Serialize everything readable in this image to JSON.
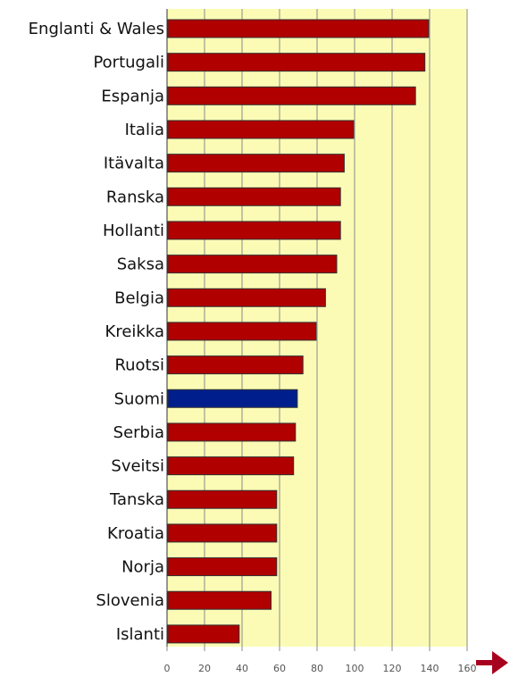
{
  "chart_data": {
    "type": "bar",
    "orientation": "horizontal",
    "categories": [
      "Englanti & Wales",
      "Portugali",
      "Espanja",
      "Italia",
      "Itävalta",
      "Ranska",
      "Hollanti",
      "Saksa",
      "Belgia",
      "Kreikka",
      "Ruotsi",
      "Suomi",
      "Serbia",
      "Sveitsi",
      "Tanska",
      "Kroatia",
      "Norja",
      "Slovenia",
      "Islanti"
    ],
    "values": [
      139,
      137,
      132,
      99,
      94,
      92,
      92,
      90,
      84,
      79,
      72,
      69,
      68,
      67,
      58,
      58,
      58,
      55,
      38
    ],
    "highlight": "Suomi",
    "xlim": [
      0,
      160
    ],
    "xticks": [
      "0",
      "20",
      "40",
      "60",
      "80",
      "100",
      "120",
      "140",
      "160"
    ],
    "grid": true,
    "colors": {
      "bar": "#b00000",
      "highlight": "#001f8c",
      "plot_background": "#fbfbb5",
      "grid": "#8a8a8a",
      "arrow": "#a8001f"
    },
    "arrow_icon": "right-arrow-icon"
  }
}
